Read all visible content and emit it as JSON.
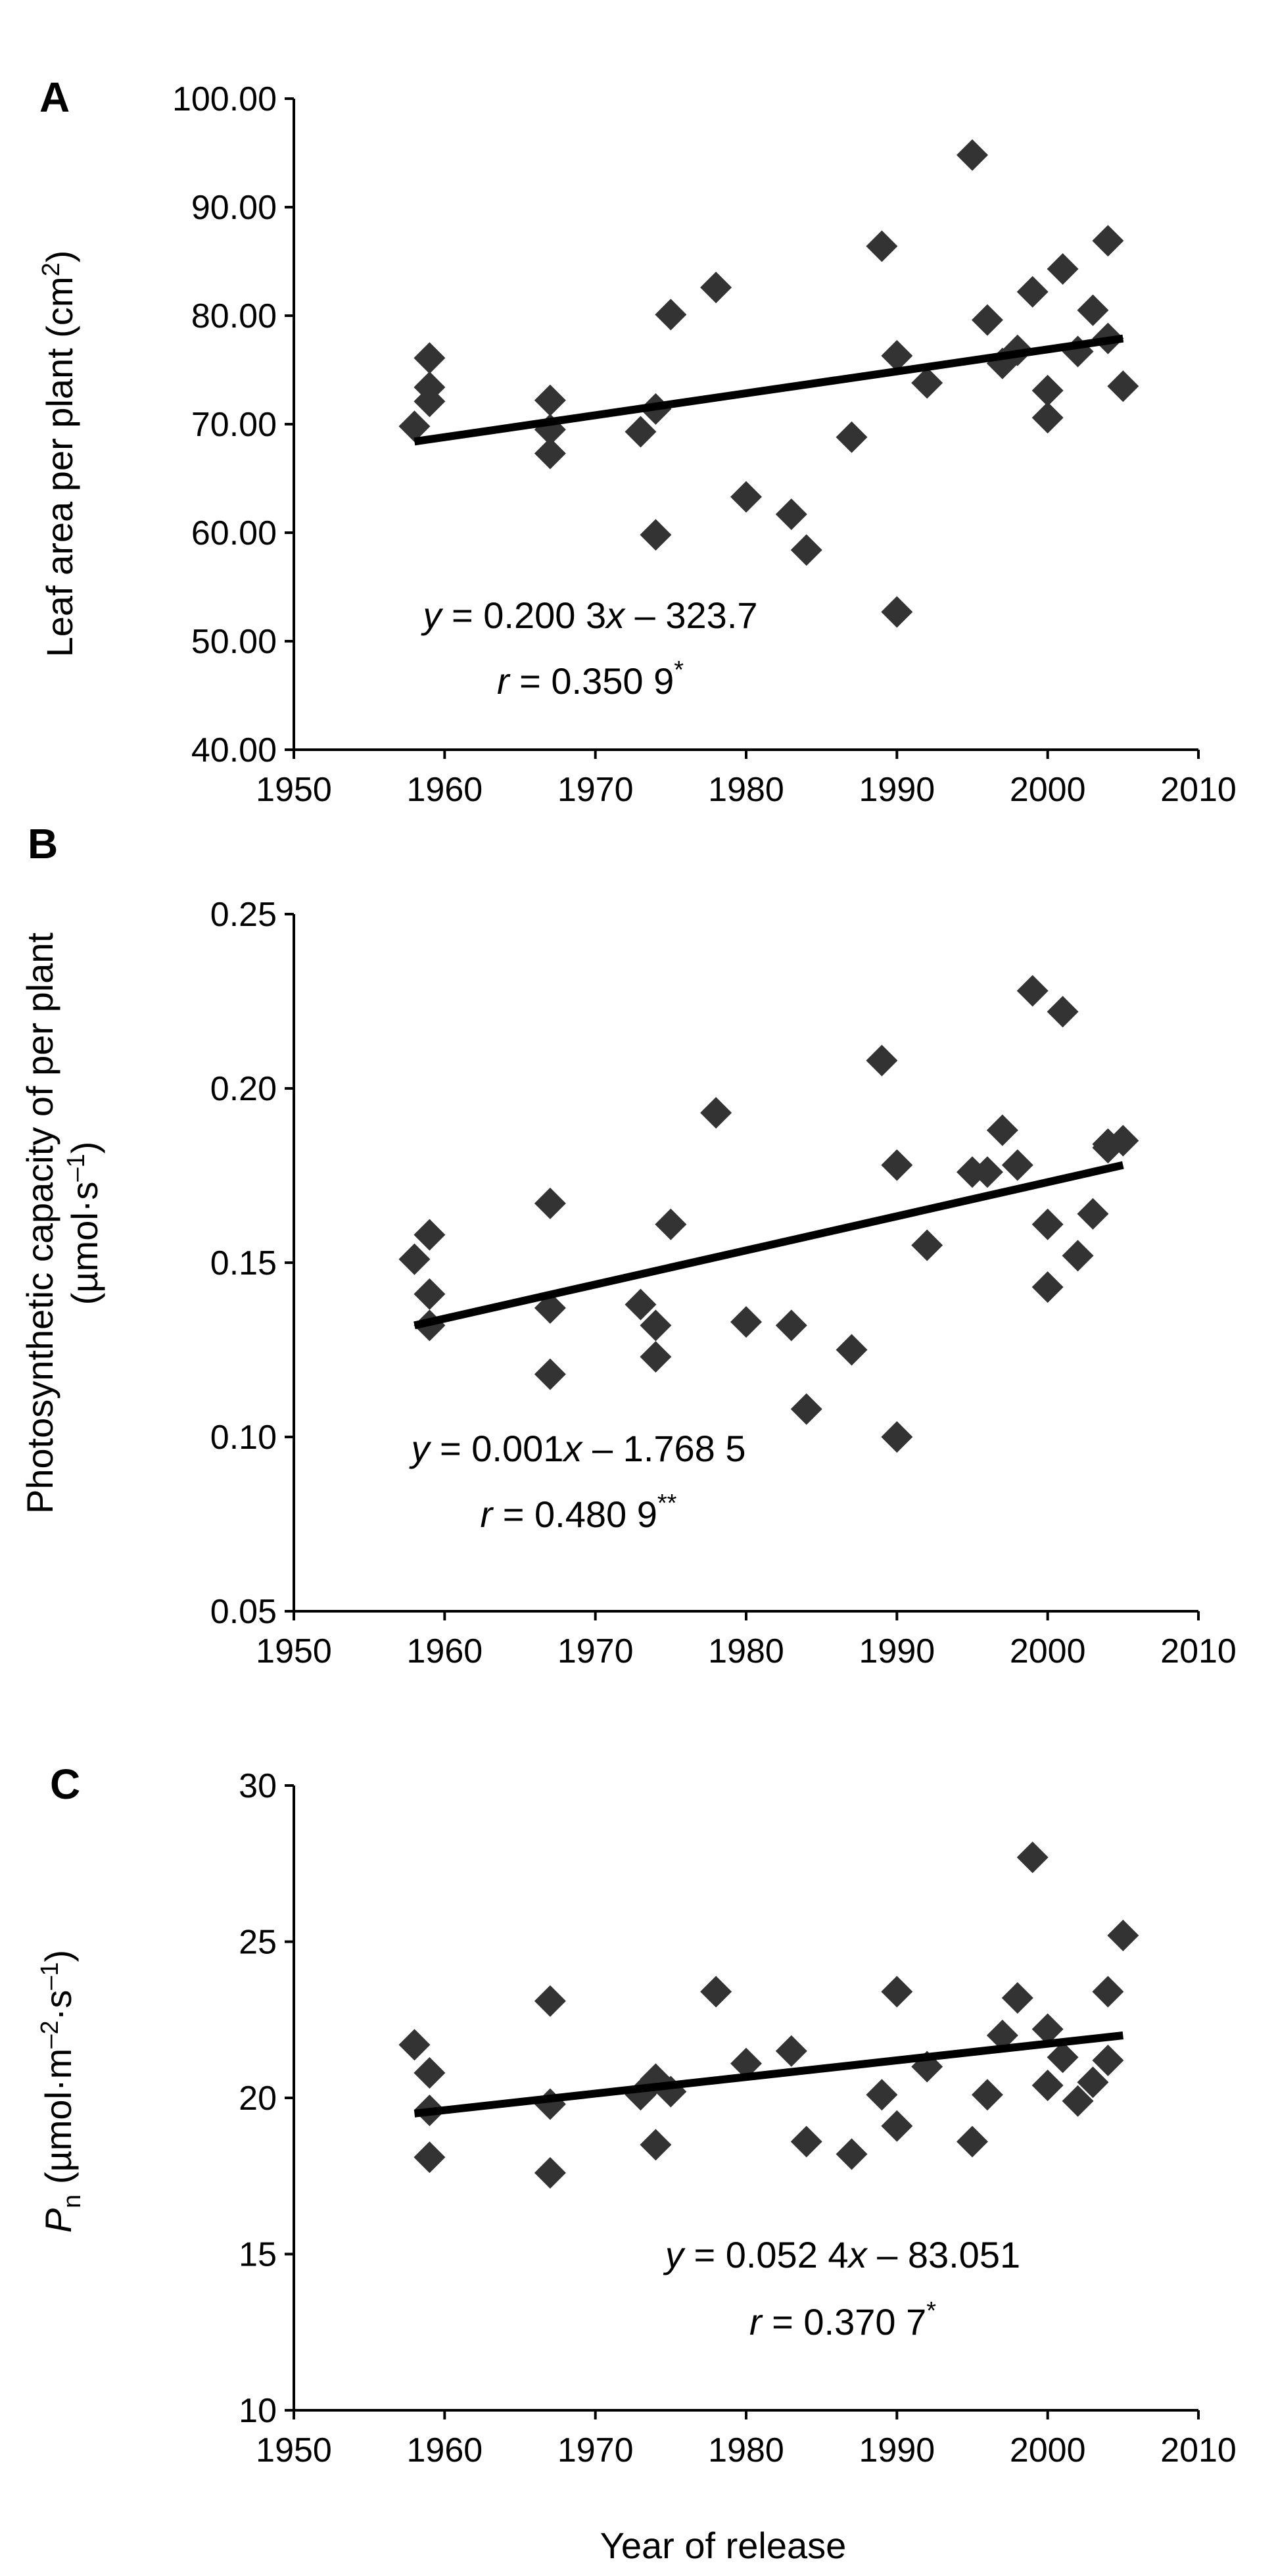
{
  "chart_data": [
    {
      "type": "scatter",
      "panel_label": "A",
      "ylabel": "Leaf area per plant (cm",
      "ylabel_sup": "2",
      "ylabel_end": ")",
      "xlabel": "",
      "xlim": [
        1950,
        2010
      ],
      "ylim": [
        40,
        100
      ],
      "xticks": [
        1950,
        1960,
        1970,
        1980,
        1990,
        2000,
        2010
      ],
      "xtick_labels": [
        "1950",
        "1960",
        "1970",
        "1980",
        "1990",
        "2000",
        "2010"
      ],
      "yticks": [
        40,
        50,
        60,
        70,
        80,
        90,
        100
      ],
      "ytick_labels": [
        "40.00",
        "50.00",
        "60.00",
        "70.00",
        "80.00",
        "90.00",
        "100.00"
      ],
      "marker": "diamond",
      "marker_color": "#333333",
      "points": [
        {
          "x": 1958,
          "y": 69.8
        },
        {
          "x": 1959,
          "y": 76.1
        },
        {
          "x": 1959,
          "y": 73.4
        },
        {
          "x": 1959,
          "y": 72.1
        },
        {
          "x": 1967,
          "y": 72.2
        },
        {
          "x": 1967,
          "y": 69.5
        },
        {
          "x": 1967,
          "y": 67.3
        },
        {
          "x": 1973,
          "y": 69.3
        },
        {
          "x": 1974,
          "y": 71.4
        },
        {
          "x": 1974,
          "y": 59.8
        },
        {
          "x": 1975,
          "y": 80.1
        },
        {
          "x": 1978,
          "y": 82.6
        },
        {
          "x": 1980,
          "y": 63.3
        },
        {
          "x": 1983,
          "y": 61.7
        },
        {
          "x": 1984,
          "y": 58.4
        },
        {
          "x": 1987,
          "y": 68.8
        },
        {
          "x": 1989,
          "y": 86.4
        },
        {
          "x": 1990,
          "y": 76.3
        },
        {
          "x": 1990,
          "y": 52.7
        },
        {
          "x": 1992,
          "y": 73.8
        },
        {
          "x": 1995,
          "y": 94.8
        },
        {
          "x": 1996,
          "y": 79.6
        },
        {
          "x": 1997,
          "y": 75.6
        },
        {
          "x": 1998,
          "y": 76.8
        },
        {
          "x": 1999,
          "y": 82.2
        },
        {
          "x": 2000,
          "y": 73.1
        },
        {
          "x": 2000,
          "y": 70.6
        },
        {
          "x": 2001,
          "y": 84.3
        },
        {
          "x": 2002,
          "y": 76.7
        },
        {
          "x": 2003,
          "y": 80.5
        },
        {
          "x": 2004,
          "y": 86.9
        },
        {
          "x": 2004,
          "y": 77.9
        },
        {
          "x": 2005,
          "y": 73.5
        }
      ],
      "trend_line": {
        "x": [
          1958,
          2005
        ],
        "y": [
          68.4,
          77.9
        ]
      },
      "equation": {
        "line1": [
          {
            "text": "y",
            "italic": true
          },
          {
            "text": " = 0.200 3",
            "italic": false
          },
          {
            "text": "x",
            "italic": true
          },
          {
            "text": " – 323.7",
            "italic": false
          }
        ],
        "line2": [
          {
            "text": "r",
            "italic": true
          },
          {
            "text": " = 0.350 9",
            "italic": false
          },
          {
            "text": "*",
            "italic": false,
            "sup": true
          }
        ]
      }
    },
    {
      "type": "scatter",
      "panel_label": "B",
      "ylabel": "Photosynthetic capacity of per plant",
      "ylabel2": "(µmol·s",
      "ylabel2_sup": "–1",
      "ylabel2_end": ")",
      "xlabel": "",
      "xlim": [
        1950,
        2010
      ],
      "ylim": [
        0.05,
        0.25
      ],
      "xticks": [
        1950,
        1960,
        1970,
        1980,
        1990,
        2000,
        2010
      ],
      "xtick_labels": [
        "1950",
        "1960",
        "1970",
        "1980",
        "1990",
        "2000",
        "2010"
      ],
      "yticks": [
        0.05,
        0.1,
        0.15,
        0.2,
        0.25
      ],
      "ytick_labels": [
        "0.05",
        "0.10",
        "0.15",
        "0.20",
        "0.25"
      ],
      "marker": "diamond",
      "marker_color": "#333333",
      "points": [
        {
          "x": 1958,
          "y": 0.151
        },
        {
          "x": 1959,
          "y": 0.158
        },
        {
          "x": 1959,
          "y": 0.141
        },
        {
          "x": 1959,
          "y": 0.132
        },
        {
          "x": 1967,
          "y": 0.167
        },
        {
          "x": 1967,
          "y": 0.137
        },
        {
          "x": 1967,
          "y": 0.118
        },
        {
          "x": 1973,
          "y": 0.138
        },
        {
          "x": 1974,
          "y": 0.132
        },
        {
          "x": 1974,
          "y": 0.123
        },
        {
          "x": 1975,
          "y": 0.161
        },
        {
          "x": 1978,
          "y": 0.193
        },
        {
          "x": 1980,
          "y": 0.133
        },
        {
          "x": 1983,
          "y": 0.132
        },
        {
          "x": 1984,
          "y": 0.108
        },
        {
          "x": 1987,
          "y": 0.125
        },
        {
          "x": 1989,
          "y": 0.208
        },
        {
          "x": 1990,
          "y": 0.178
        },
        {
          "x": 1990,
          "y": 0.1
        },
        {
          "x": 1992,
          "y": 0.155
        },
        {
          "x": 1995,
          "y": 0.176
        },
        {
          "x": 1996,
          "y": 0.176
        },
        {
          "x": 1997,
          "y": 0.188
        },
        {
          "x": 1998,
          "y": 0.178
        },
        {
          "x": 1999,
          "y": 0.228
        },
        {
          "x": 2000,
          "y": 0.161
        },
        {
          "x": 2000,
          "y": 0.143
        },
        {
          "x": 2001,
          "y": 0.222
        },
        {
          "x": 2002,
          "y": 0.152
        },
        {
          "x": 2003,
          "y": 0.164
        },
        {
          "x": 2004,
          "y": 0.183
        },
        {
          "x": 2004,
          "y": 0.184
        },
        {
          "x": 2005,
          "y": 0.185
        }
      ],
      "trend_line": {
        "x": [
          1958,
          2005
        ],
        "y": [
          0.132,
          0.178
        ]
      },
      "equation": {
        "line1": [
          {
            "text": "y",
            "italic": true
          },
          {
            "text": " = 0.001",
            "italic": false
          },
          {
            "text": "x",
            "italic": true
          },
          {
            "text": " – 1.768 5",
            "italic": false
          }
        ],
        "line2": [
          {
            "text": "r",
            "italic": true
          },
          {
            "text": " = 0.480 9",
            "italic": false
          },
          {
            "text": "**",
            "italic": false,
            "sup": true
          }
        ]
      }
    },
    {
      "type": "scatter",
      "panel_label": "C",
      "ylabel_italic": "P",
      "ylabel_sub": "n",
      "ylabel": " (µmol·m",
      "ylabel_sup1": "–2",
      "ylabel_mid": "·s",
      "ylabel_sup2": "–1",
      "ylabel_end": ")",
      "xlabel": "Year of release",
      "xlim": [
        1950,
        2010
      ],
      "ylim": [
        10,
        30
      ],
      "xticks": [
        1950,
        1960,
        1970,
        1980,
        1990,
        2000,
        2010
      ],
      "xtick_labels": [
        "1950",
        "1960",
        "1970",
        "1980",
        "1990",
        "2000",
        "2010"
      ],
      "yticks": [
        10,
        15,
        20,
        25,
        30
      ],
      "ytick_labels": [
        "10",
        "15",
        "20",
        "25",
        "30"
      ],
      "marker": "diamond",
      "marker_color": "#333333",
      "points": [
        {
          "x": 1958,
          "y": 21.7
        },
        {
          "x": 1959,
          "y": 20.8
        },
        {
          "x": 1959,
          "y": 19.6
        },
        {
          "x": 1959,
          "y": 18.1
        },
        {
          "x": 1967,
          "y": 23.1
        },
        {
          "x": 1967,
          "y": 19.8
        },
        {
          "x": 1967,
          "y": 17.6
        },
        {
          "x": 1973,
          "y": 20.1
        },
        {
          "x": 1974,
          "y": 20.6
        },
        {
          "x": 1974,
          "y": 18.5
        },
        {
          "x": 1975,
          "y": 20.2
        },
        {
          "x": 1978,
          "y": 23.4
        },
        {
          "x": 1980,
          "y": 21.1
        },
        {
          "x": 1983,
          "y": 21.5
        },
        {
          "x": 1984,
          "y": 18.6
        },
        {
          "x": 1987,
          "y": 18.2
        },
        {
          "x": 1989,
          "y": 20.1
        },
        {
          "x": 1990,
          "y": 23.4
        },
        {
          "x": 1990,
          "y": 19.1
        },
        {
          "x": 1992,
          "y": 21.0
        },
        {
          "x": 1995,
          "y": 18.6
        },
        {
          "x": 1996,
          "y": 20.1
        },
        {
          "x": 1997,
          "y": 22.0
        },
        {
          "x": 1998,
          "y": 23.2
        },
        {
          "x": 1999,
          "y": 27.7
        },
        {
          "x": 2000,
          "y": 22.2
        },
        {
          "x": 2000,
          "y": 20.4
        },
        {
          "x": 2001,
          "y": 21.3
        },
        {
          "x": 2002,
          "y": 19.9
        },
        {
          "x": 2003,
          "y": 20.5
        },
        {
          "x": 2004,
          "y": 23.4
        },
        {
          "x": 2004,
          "y": 21.2
        },
        {
          "x": 2005,
          "y": 25.2
        }
      ],
      "trend_line": {
        "x": [
          1958,
          2005
        ],
        "y": [
          19.5,
          22.0
        ]
      },
      "equation": {
        "line1": [
          {
            "text": "y",
            "italic": true
          },
          {
            "text": " = 0.052 4",
            "italic": false
          },
          {
            "text": "x",
            "italic": true
          },
          {
            "text": " – 83.051",
            "italic": false
          }
        ],
        "line2": [
          {
            "text": "r",
            "italic": true
          },
          {
            "text": " = 0.370 7",
            "italic": false
          },
          {
            "text": "*",
            "italic": false,
            "sup": true
          }
        ]
      }
    }
  ]
}
